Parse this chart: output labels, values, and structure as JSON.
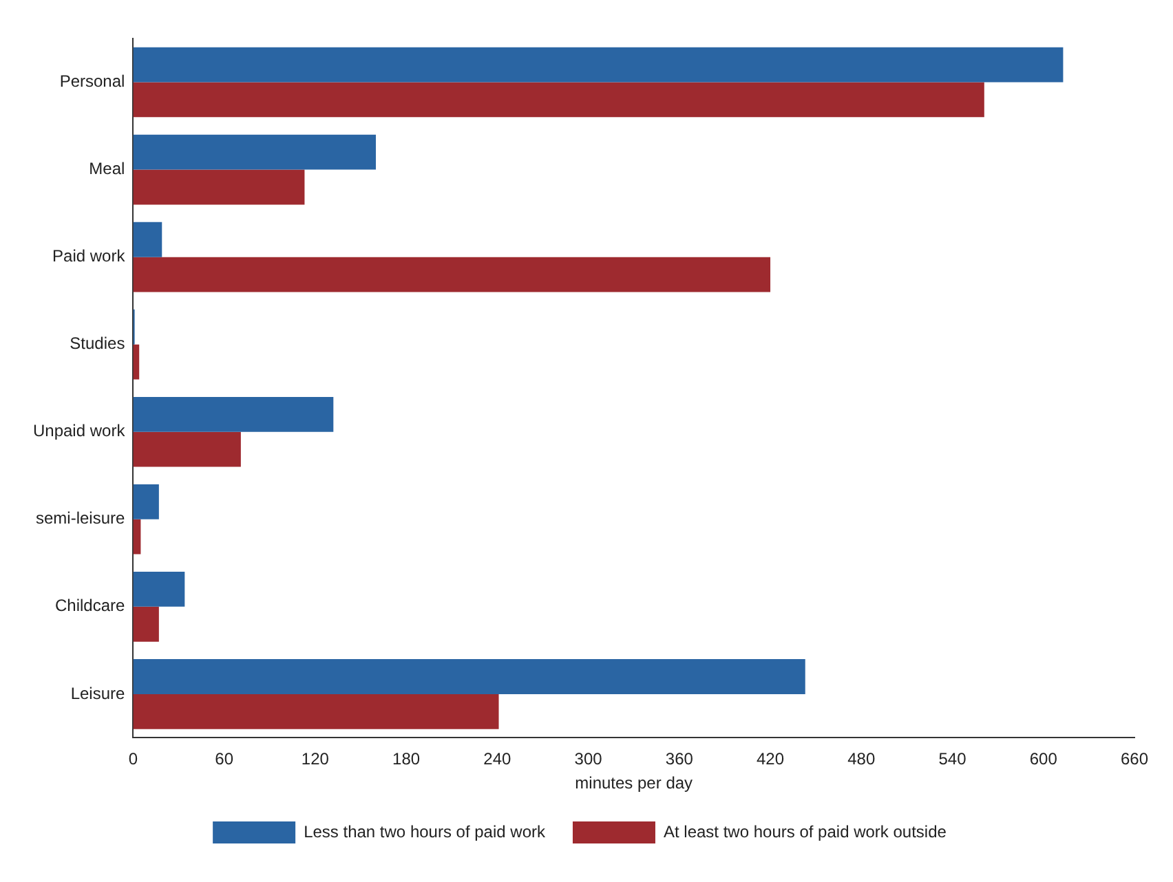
{
  "chart_data": {
    "type": "bar",
    "orientation": "horizontal",
    "xlabel": "minutes per day",
    "categories": [
      "Personal",
      "Meal",
      "Paid work",
      "Studies",
      "Unpaid work",
      "semi-leisure",
      "Childcare",
      "Leisure"
    ],
    "series": [
      {
        "name": "Less than two hours of paid work",
        "color": "#2a65a3",
        "values": [
          613,
          160,
          19,
          1,
          132,
          17,
          34,
          443
        ]
      },
      {
        "name": "At least two hours of paid work outside",
        "color": "#9e2a2f",
        "values": [
          561,
          113,
          420,
          4,
          71,
          5,
          17,
          241
        ]
      }
    ],
    "xlim": [
      0,
      660
    ],
    "xticks": [
      0,
      60,
      120,
      180,
      240,
      300,
      360,
      420,
      480,
      540,
      600,
      660
    ],
    "grid": false,
    "legend": "bottom"
  }
}
